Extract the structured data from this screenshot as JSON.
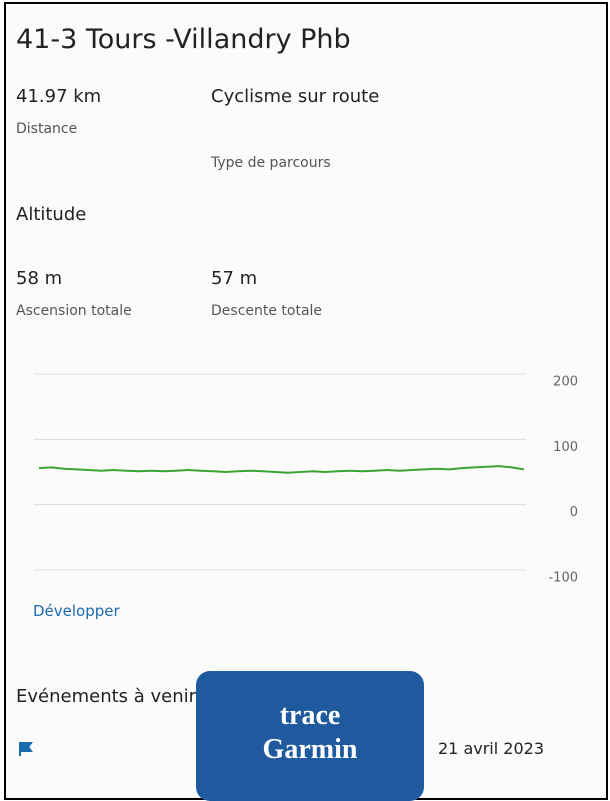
{
  "title": "41-3 Tours -Villandry Phb",
  "stats": [
    {
      "value": "41.97 km",
      "label": "Distance"
    },
    {
      "value": "Cyclisme sur route",
      "label": "Type de parcours"
    }
  ],
  "altitude": {
    "heading": "Altitude",
    "stats": [
      {
        "value": "58 m",
        "label": "Ascension totale"
      },
      {
        "value": "57 m",
        "label": "Descente totale"
      }
    ]
  },
  "chart_data": {
    "type": "line",
    "series": [
      {
        "color": "#3aa62f",
        "values": [
          56,
          57,
          55,
          54,
          53,
          52,
          53,
          52,
          51,
          52,
          51,
          52,
          53,
          52,
          51,
          50,
          51,
          52,
          51,
          50,
          49,
          50,
          51,
          50,
          51,
          52,
          51,
          52,
          53,
          52,
          53,
          54,
          55,
          54,
          56,
          57,
          58,
          59,
          57,
          54
        ]
      }
    ],
    "ylim": [
      -100,
      200
    ],
    "yticks": [
      200,
      100,
      0,
      -100
    ],
    "grid": true
  },
  "expand": "Développer",
  "events": {
    "heading": "Evénements à venir",
    "date": "21 avril 2023"
  },
  "overlay": [
    "trace",
    "Garmin"
  ]
}
